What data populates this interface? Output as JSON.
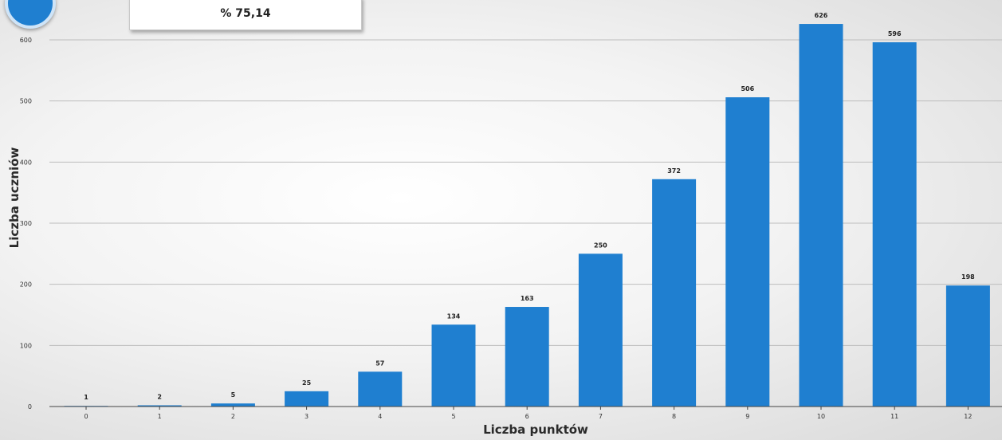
{
  "header": {
    "stat_value": "% 75,14"
  },
  "icons": {
    "logo": "clipboard-logo-icon"
  },
  "colors": {
    "bar": "#1f7fd0",
    "grid": "#bdbdbd",
    "axis": "#444444",
    "text": "#222222"
  },
  "chart_data": {
    "type": "bar",
    "title": "",
    "xlabel": "Liczba punktów",
    "ylabel": "Liczba uczniów",
    "categories": [
      "0",
      "1",
      "2",
      "3",
      "4",
      "5",
      "6",
      "7",
      "8",
      "9",
      "10",
      "11",
      "12"
    ],
    "values": [
      1,
      2,
      5,
      25,
      57,
      134,
      163,
      250,
      372,
      506,
      626,
      596,
      198
    ],
    "y_ticks": [
      0,
      100,
      200,
      300,
      400,
      500,
      600
    ],
    "ylim": [
      0,
      650
    ],
    "grid": true,
    "legend": "none",
    "data_labels": true
  }
}
